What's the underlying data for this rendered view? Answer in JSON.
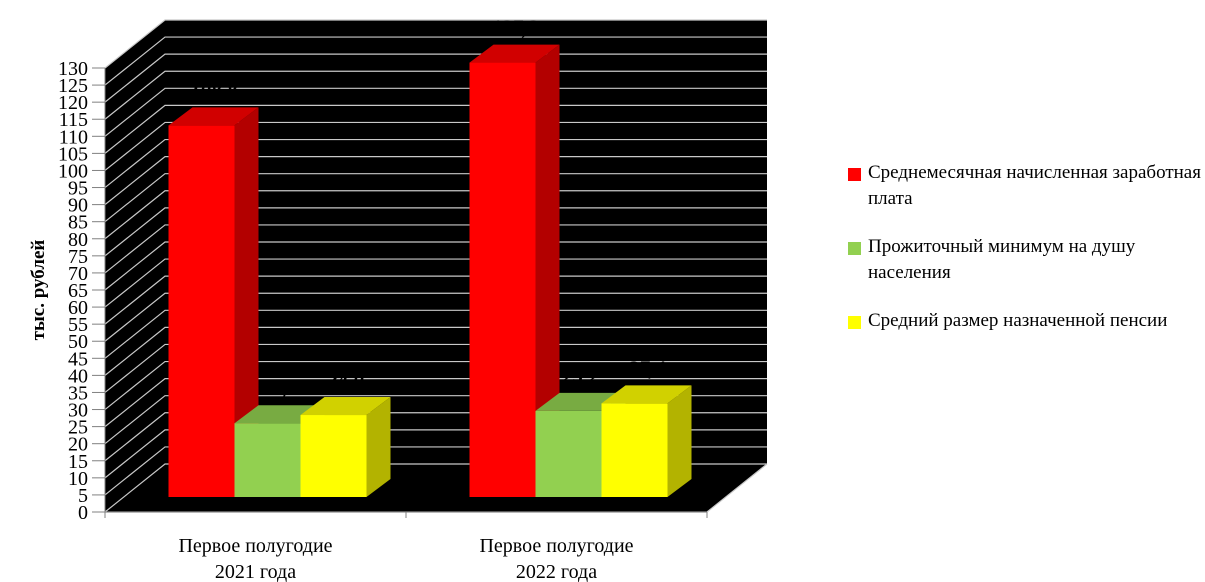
{
  "chart_data": {
    "type": "bar",
    "title": "",
    "xlabel": "",
    "ylabel": "тыс. рублей",
    "ylim": [
      0,
      130
    ],
    "ytick_step": 5,
    "categories": [
      "Первое полугодие 2021 года",
      "Первое полугодие 2022 года"
    ],
    "series": [
      {
        "name": "Среднемесячная начисленная заработная плата",
        "values": [
          108.8,
          127.2
        ],
        "color": "#ff0000"
      },
      {
        "name": "Прожиточный минимум на душу населения",
        "values": [
          21.6,
          25.2
        ],
        "color": "#92d050"
      },
      {
        "name": "Средний размер назначенной пенсии",
        "values": [
          24.0,
          27.4
        ],
        "color": "#ffff00"
      }
    ],
    "data_labels": [
      [
        "108,8",
        "21,6",
        "24,0"
      ],
      [
        "127,2",
        "25,2",
        "27,4"
      ]
    ],
    "legend_position": "right",
    "grid": true,
    "style_3d": true,
    "colors": {
      "wall": "#000000",
      "gridline": "#c8c8c8"
    }
  },
  "legend": {
    "items": [
      {
        "label": "Среднемесячная начисленная заработная плата",
        "color": "#ff0000"
      },
      {
        "label": "Прожиточный минимум на душу населения",
        "color": "#92d050"
      },
      {
        "label": "Средний размер назначенной пенсии",
        "color": "#ffff00"
      }
    ]
  }
}
